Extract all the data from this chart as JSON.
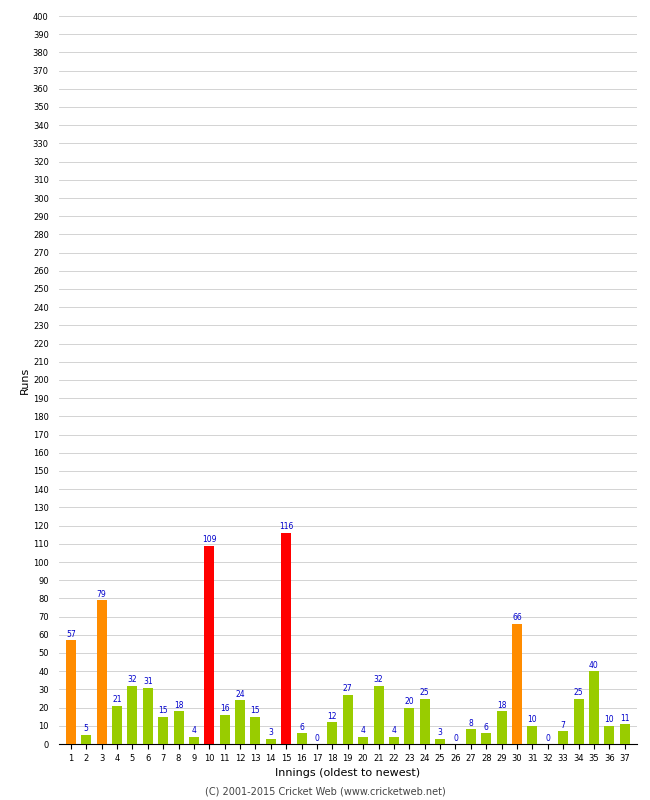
{
  "innings": [
    1,
    2,
    3,
    4,
    5,
    6,
    7,
    8,
    9,
    10,
    11,
    12,
    13,
    14,
    15,
    16,
    17,
    18,
    19,
    20,
    21,
    22,
    23,
    24,
    25,
    26,
    27,
    28,
    29,
    30,
    31,
    32,
    33,
    34,
    35,
    36,
    37
  ],
  "runs": [
    57,
    5,
    79,
    21,
    32,
    31,
    15,
    18,
    4,
    109,
    16,
    24,
    15,
    3,
    116,
    6,
    0,
    12,
    27,
    4,
    32,
    4,
    20,
    25,
    3,
    0,
    8,
    6,
    18,
    66,
    10,
    0,
    7,
    25,
    40,
    10,
    11
  ],
  "colors": [
    "#ff8c00",
    "#99cc00",
    "#ff8c00",
    "#99cc00",
    "#99cc00",
    "#99cc00",
    "#99cc00",
    "#99cc00",
    "#99cc00",
    "#ff0000",
    "#99cc00",
    "#99cc00",
    "#99cc00",
    "#99cc00",
    "#ff0000",
    "#99cc00",
    "#99cc00",
    "#99cc00",
    "#99cc00",
    "#99cc00",
    "#99cc00",
    "#99cc00",
    "#99cc00",
    "#99cc00",
    "#99cc00",
    "#99cc00",
    "#99cc00",
    "#99cc00",
    "#99cc00",
    "#ff8c00",
    "#99cc00",
    "#99cc00",
    "#99cc00",
    "#99cc00",
    "#99cc00",
    "#99cc00",
    "#99cc00"
  ],
  "xlabel": "Innings (oldest to newest)",
  "ylabel": "Runs",
  "ylim": [
    0,
    400
  ],
  "yticks": [
    0,
    10,
    20,
    30,
    40,
    50,
    60,
    70,
    80,
    90,
    100,
    110,
    120,
    130,
    140,
    150,
    160,
    170,
    180,
    190,
    200,
    210,
    220,
    230,
    240,
    250,
    260,
    270,
    280,
    290,
    300,
    310,
    320,
    330,
    340,
    350,
    360,
    370,
    380,
    390,
    400
  ],
  "label_color": "#0000cc",
  "background_color": "#ffffff",
  "grid_color": "#cccccc",
  "footer": "(C) 2001-2015 Cricket Web (www.cricketweb.net)",
  "bar_width": 0.65
}
